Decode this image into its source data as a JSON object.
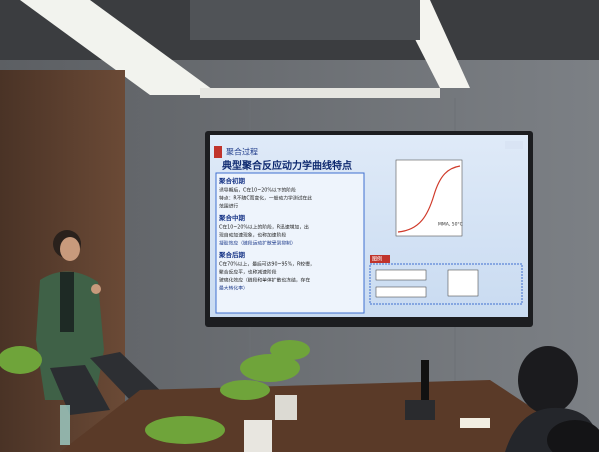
{
  "slide": {
    "header": "聚合过程",
    "title": "典型聚合反应动力学曲线特点",
    "sections": [
      {
        "heading": "聚合初期",
        "lines": [
          "诱导期后，C在10~20%以下的阶段",
          "特点：R不随C而变化，一般动力学测试在此",
          "范围进行"
        ]
      },
      {
        "heading": "聚合中期",
        "lines": [
          "C在10~20%以上的阶段，R迅速增加，出",
          "现自动加速现象，也称加速阶段",
          "凝胶效应（链段运动扩散受到抑制）"
        ]
      },
      {
        "heading": "聚合后期",
        "lines": [
          "C在70%以上，最后可达90~95%，R较慢，",
          "聚合反应平，也称减速阶段",
          "玻璃化效应（链段和单体扩散也冻结，存在",
          "最大转化率）"
        ]
      }
    ],
    "chart_note": "MMA, 50°C",
    "legend_tag": "图例"
  }
}
